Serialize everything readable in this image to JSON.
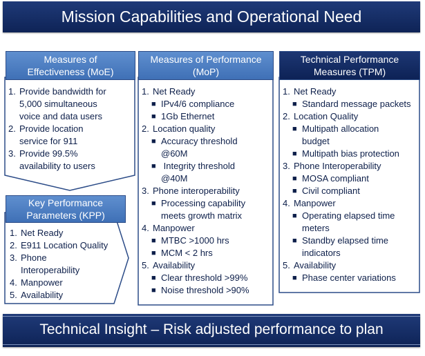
{
  "title": "Mission Capabilities and Operational Need",
  "footer": "Technical Insight – Risk adjusted performance to plan",
  "moe": {
    "header": [
      "Measures of",
      "Effectiveness (MoE)"
    ],
    "items": [
      {
        "num": "1.",
        "lines": [
          "Provide bandwidth for",
          "5,000 simultaneous",
          "voice and data  users"
        ]
      },
      {
        "num": "2.",
        "lines": [
          "Provide location",
          "service for 911"
        ]
      },
      {
        "num": "3.",
        "lines": [
          "Provide 99.5%",
          "availability to users"
        ]
      }
    ]
  },
  "kpp": {
    "header": [
      "Key Performance",
      "Parameters (KPP)"
    ],
    "items": [
      {
        "num": "1.",
        "lines": [
          "Net Ready"
        ]
      },
      {
        "num": "2.",
        "lines": [
          "E911 Location Quality"
        ]
      },
      {
        "num": "3.",
        "lines": [
          "Phone",
          "Interoperability"
        ]
      },
      {
        "num": "4.",
        "lines": [
          "Manpower"
        ]
      },
      {
        "num": "5.",
        "lines": [
          "Availability"
        ]
      }
    ]
  },
  "mop": {
    "header": [
      "Measures of Performance",
      "(MoP)"
    ],
    "items": [
      {
        "num": "1.",
        "label": "Net Ready",
        "subs": [
          [
            "IPv4/6 compliance"
          ],
          [
            "1Gb Ethernet"
          ]
        ]
      },
      {
        "num": "2.",
        "label": "Location quality",
        "subs": [
          [
            "Accuracy threshold",
            "@60M"
          ],
          [
            " Integrity threshold",
            "@40M"
          ]
        ]
      },
      {
        "num": "3.",
        "label": "Phone interoperability",
        "subs": [
          [
            "Processing capability",
            "meets growth matrix"
          ]
        ]
      },
      {
        "num": "4.",
        "label": "Manpower",
        "subs": [
          [
            "MTBC >1000 hrs"
          ],
          [
            "MCM < 2 hrs"
          ]
        ]
      },
      {
        "num": "5.",
        "label": "Availability",
        "subs": [
          [
            "Clear threshold >99%"
          ],
          [
            "Noise threshold >90%"
          ]
        ]
      }
    ]
  },
  "tpm": {
    "header": [
      "Technical Performance",
      "Measures (TPM)"
    ],
    "items": [
      {
        "num": "1.",
        "label": "Net Ready",
        "subs": [
          [
            "Standard message packets"
          ]
        ]
      },
      {
        "num": "2.",
        "label": "Location Quality",
        "subs": [
          [
            "Multipath allocation",
            "budget"
          ],
          [
            "Multipath bias protection"
          ]
        ]
      },
      {
        "num": "3.",
        "label": "Phone Interoperability",
        "subs": [
          [
            "MOSA compliant"
          ],
          [
            "Civil compliant"
          ]
        ]
      },
      {
        "num": "4.",
        "label": "Manpower",
        "subs": [
          [
            "Operating elapsed time",
            "meters"
          ],
          [
            "Standby elapsed time",
            "indicators"
          ]
        ]
      },
      {
        "num": "5.",
        "label": "Availability",
        "subs": [
          [
            "Phase center variations"
          ]
        ]
      }
    ]
  },
  "colors": {
    "dark_navy": "#0e2356",
    "mid_blue": "#4a7bc0",
    "text": "#0d1f4a",
    "border": "#2b4b87"
  }
}
